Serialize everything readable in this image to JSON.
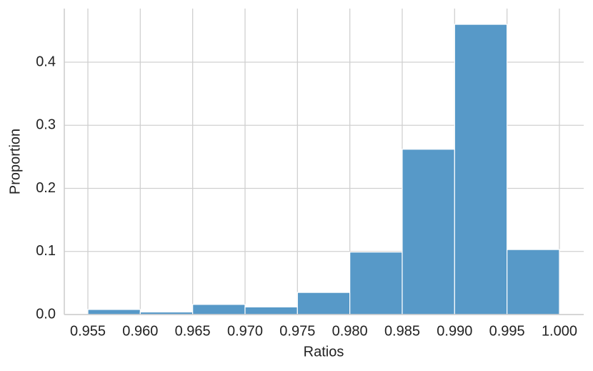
{
  "chart_data": {
    "type": "histogram",
    "x_label": "Ratios",
    "y_label": "Proportion",
    "bins": [
      0.955,
      0.96,
      0.965,
      0.97,
      0.975,
      0.98,
      0.985,
      0.99,
      0.995,
      1.0
    ],
    "values": [
      0.008,
      0.004,
      0.016,
      0.012,
      0.035,
      0.099,
      0.262,
      0.46,
      0.103
    ],
    "color": "#5799c8",
    "xlim": [
      0.95275,
      1.00232
    ],
    "ylim": [
      0,
      0.485
    ],
    "xticks": [
      0.955,
      {
        "value": 0.96,
        "label": "0.960"
      },
      0.965,
      {
        "value": 0.97,
        "label": "0.970"
      },
      0.975,
      {
        "value": 0.98,
        "label": "0.980"
      },
      0.985,
      {
        "value": 0.99,
        "label": "0.990"
      },
      0.995,
      {
        "value": 1.0,
        "label": "1.000"
      }
    ],
    "yticks": [
      {
        "value": 0,
        "label": "0.0"
      },
      0.1,
      0.2,
      0.3,
      0.4
    ],
    "grid": true
  }
}
